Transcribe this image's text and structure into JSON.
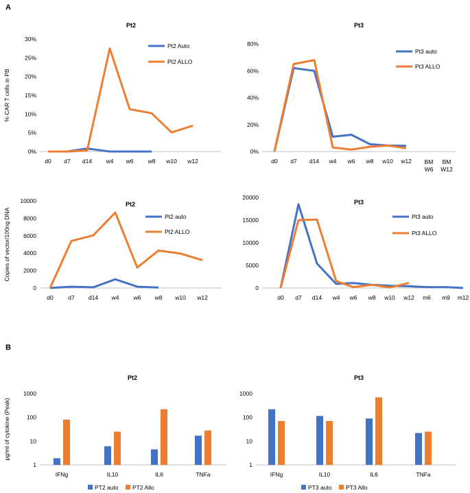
{
  "panels": {
    "a": "A",
    "b": "B"
  },
  "colors": {
    "blue": "#4472C4",
    "orange": "#ED7D31",
    "axis": "#BFBFBF"
  },
  "chart_data": [
    {
      "id": "c1",
      "type": "line",
      "title": "Pt2",
      "ylabel": "% CAR T cells in PB",
      "xlabel": "",
      "ylim": [
        0,
        30
      ],
      "ytick_values": [
        0,
        5,
        10,
        15,
        20,
        25,
        30
      ],
      "yticks": [
        "0%",
        "5%",
        "10%",
        "15%",
        "20%",
        "25%",
        "30%"
      ],
      "categories": [
        "d0",
        "d7",
        "d14",
        "w4",
        "w6",
        "w8",
        "w10",
        "w12"
      ],
      "series": [
        {
          "name": "Pt2 Auto",
          "color": "#4472C4",
          "values": [
            0,
            0,
            0.8,
            0,
            0,
            0,
            null,
            null
          ]
        },
        {
          "name": "Pt2 ALLO",
          "color": "#ED7D31",
          "values": [
            0,
            0,
            0.3,
            27.5,
            11.3,
            10.2,
            5.1,
            6.9
          ]
        }
      ],
      "legend": "top-right"
    },
    {
      "id": "c2",
      "type": "line",
      "title": "Pt3",
      "ylabel": "",
      "xlabel": "",
      "ylim": [
        0,
        80
      ],
      "ytick_values": [
        0,
        20,
        40,
        60,
        80
      ],
      "yticks": [
        "0%",
        "20%",
        "40%",
        "60%",
        "80%"
      ],
      "categories": [
        "d0",
        "d7",
        "d14",
        "w4",
        "w6",
        "w8",
        "w10",
        "w12",
        "",
        "BM W6",
        "BM W12"
      ],
      "series": [
        {
          "name": "Pt3 auto",
          "color": "#4472C4",
          "values": [
            0,
            62,
            60,
            11,
            12.5,
            5.5,
            4.5,
            4.3,
            null,
            null,
            null
          ]
        },
        {
          "name": "Pt3 ALLO",
          "color": "#ED7D31",
          "values": [
            0,
            65,
            68,
            3,
            1.5,
            3.5,
            4.5,
            2.5,
            null,
            null,
            null
          ]
        }
      ],
      "legend": "right"
    },
    {
      "id": "c3",
      "type": "line",
      "title": "Pt2",
      "ylabel": "Copies of vector/100ng DNA",
      "xlabel": "",
      "ylim": [
        0,
        10000
      ],
      "ytick_values": [
        0,
        2000,
        4000,
        6000,
        8000,
        10000
      ],
      "yticks": [
        "0",
        "2000",
        "4000",
        "6000",
        "8000",
        "10000"
      ],
      "categories": [
        "d0",
        "d7",
        "d14",
        "w4",
        "w6",
        "w8",
        "w10",
        "w12"
      ],
      "series": [
        {
          "name": "Pt2 auto",
          "color": "#4472C4",
          "values": [
            0,
            150,
            80,
            1000,
            150,
            50,
            null,
            null
          ]
        },
        {
          "name": "Pt2 ALLO",
          "color": "#ED7D31",
          "values": [
            0,
            5400,
            6050,
            8650,
            2350,
            4300,
            3950,
            3200
          ]
        }
      ],
      "legend": "top-right"
    },
    {
      "id": "c4",
      "type": "line",
      "title": "Pt3",
      "ylabel": "",
      "xlabel": "",
      "ylim": [
        0,
        20000
      ],
      "ytick_values": [
        0,
        5000,
        10000,
        15000,
        20000
      ],
      "yticks": [
        "0",
        "5000",
        "10000",
        "15000",
        "20000"
      ],
      "categories": [
        "d0",
        "d7",
        "d14",
        "w4",
        "w6",
        "w8",
        "w10",
        "w12",
        "m6",
        "m9",
        "m12"
      ],
      "series": [
        {
          "name": "Pt3 auto",
          "color": "#4472C4",
          "values": [
            0,
            18500,
            5400,
            900,
            1100,
            700,
            500,
            400,
            200,
            200,
            0
          ]
        },
        {
          "name": "Pt3 ALLO",
          "color": "#ED7D31",
          "values": [
            0,
            15000,
            15100,
            1500,
            200,
            700,
            100,
            1100,
            null,
            null,
            null
          ]
        }
      ],
      "legend": "top-right"
    },
    {
      "id": "c5",
      "type": "bar",
      "title": "Pt2",
      "ylabel": "pg/ml of cytokine (Peak)",
      "xlabel": "",
      "yscale": "log",
      "ylim": [
        1,
        1000
      ],
      "ytick_values": [
        1,
        10,
        100,
        1000
      ],
      "yticks": [
        "1",
        "10",
        "100",
        "1000"
      ],
      "categories": [
        "IFNg",
        "IL10",
        "IL6",
        "TNFa"
      ],
      "series": [
        {
          "name": "PT2 auto",
          "color": "#4472C4",
          "values": [
            1.9,
            6.1,
            4.5,
            17
          ]
        },
        {
          "name": "PT2 Allo",
          "color": "#ED7D31",
          "values": [
            80,
            25,
            220,
            28
          ]
        }
      ],
      "legend": "bottom"
    },
    {
      "id": "c6",
      "type": "bar",
      "title": "Pt3",
      "ylabel": "",
      "xlabel": "",
      "yscale": "log",
      "ylim": [
        1,
        1000
      ],
      "ytick_values": [
        1,
        10,
        100,
        1000
      ],
      "yticks": [
        "1",
        "10",
        "100",
        "1000"
      ],
      "categories": [
        "IFNg",
        "IL10",
        "IL6",
        "TNFa"
      ],
      "series": [
        {
          "name": "PT3 auto",
          "color": "#4472C4",
          "values": [
            220,
            115,
            90,
            22
          ]
        },
        {
          "name": "PT3 Allo",
          "color": "#ED7D31",
          "values": [
            70,
            70,
            700,
            25
          ]
        }
      ],
      "legend": "bottom"
    }
  ]
}
